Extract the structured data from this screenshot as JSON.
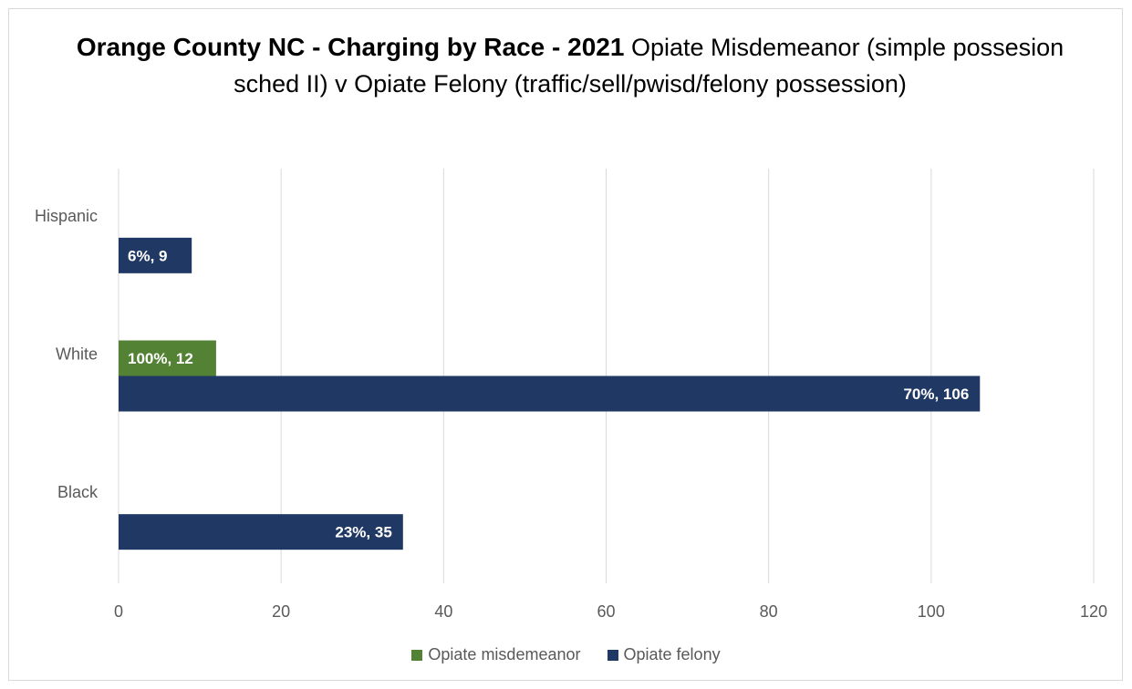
{
  "chart_data": {
    "type": "bar",
    "orientation": "horizontal",
    "title": "Orange County NC - Charging by Race - 2021",
    "subtitle": "Opiate Misdemeanor (simple possesion sched II) v Opiate Felony (traffic/sell/pwisd/felony possession)",
    "categories": [
      "Hispanic",
      "White",
      "Black"
    ],
    "series": [
      {
        "name": "Opiate misdemeanor",
        "color": "#548235",
        "values": [
          null,
          12,
          null
        ],
        "labels": [
          "",
          "100%, 12",
          ""
        ]
      },
      {
        "name": "Opiate felony",
        "color": "#203864",
        "values": [
          9,
          106,
          35
        ],
        "labels": [
          "6%, 9",
          "70%, 106",
          "23%, 35"
        ]
      }
    ],
    "xlim": [
      0,
      120
    ],
    "xticks": [
      "0",
      "20",
      "40",
      "60",
      "80",
      "100",
      "120"
    ],
    "grid": true,
    "legend_position": "bottom"
  }
}
